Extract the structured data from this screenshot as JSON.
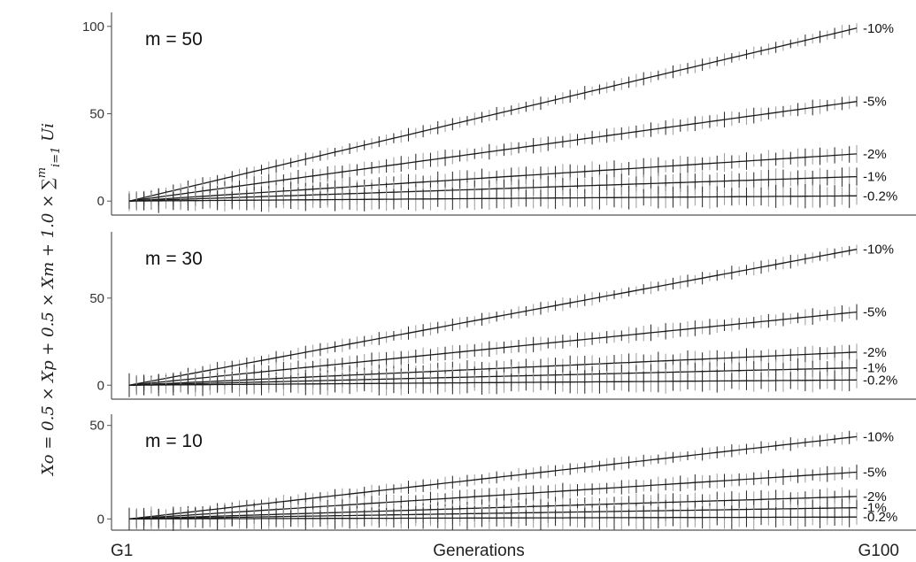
{
  "chart_data": {
    "type": "line",
    "ylabel": "Xo = 0.5 × Xp + 0.5 × Xm + 1.0 × ∑ Ui",
    "ylabel_sum_upper": "m",
    "ylabel_sum_lower": "i=1",
    "xlabel": "Generations",
    "x_tick_labels": [
      "G1",
      "G100"
    ],
    "x": {
      "start": 1,
      "end": 100,
      "points": 100
    },
    "error_bars": true,
    "grid": false,
    "legend": "inline labels at right end of lines",
    "colors": {
      "line": "#1a1a1a",
      "error_bar_dark": "#222222",
      "error_bar_light": "#9a9a9a"
    },
    "panels": [
      {
        "title": "m = 50",
        "ylim": [
          -8,
          108
        ],
        "y_ticks": [
          0,
          50,
          100
        ],
        "series": [
          {
            "name": "-10%",
            "end_value": 99
          },
          {
            "name": "-5%",
            "end_value": 57
          },
          {
            "name": "-2%",
            "end_value": 27
          },
          {
            "name": "-1%",
            "end_value": 14
          },
          {
            "name": "-0.2%",
            "end_value": 3
          }
        ]
      },
      {
        "title": "m = 30",
        "ylim": [
          -8,
          88
        ],
        "y_ticks": [
          0,
          50
        ],
        "series": [
          {
            "name": "-10%",
            "end_value": 78
          },
          {
            "name": "-5%",
            "end_value": 42
          },
          {
            "name": "-2%",
            "end_value": 19
          },
          {
            "name": "-1%",
            "end_value": 10
          },
          {
            "name": "-0.2%",
            "end_value": 3
          }
        ]
      },
      {
        "title": "m = 10",
        "ylim": [
          -6,
          56
        ],
        "y_ticks": [
          0,
          50
        ],
        "series": [
          {
            "name": "-10%",
            "end_value": 44
          },
          {
            "name": "-5%",
            "end_value": 25
          },
          {
            "name": "-2%",
            "end_value": 12
          },
          {
            "name": "-1%",
            "end_value": 6
          },
          {
            "name": "-0.2%",
            "end_value": 1
          }
        ]
      }
    ]
  }
}
